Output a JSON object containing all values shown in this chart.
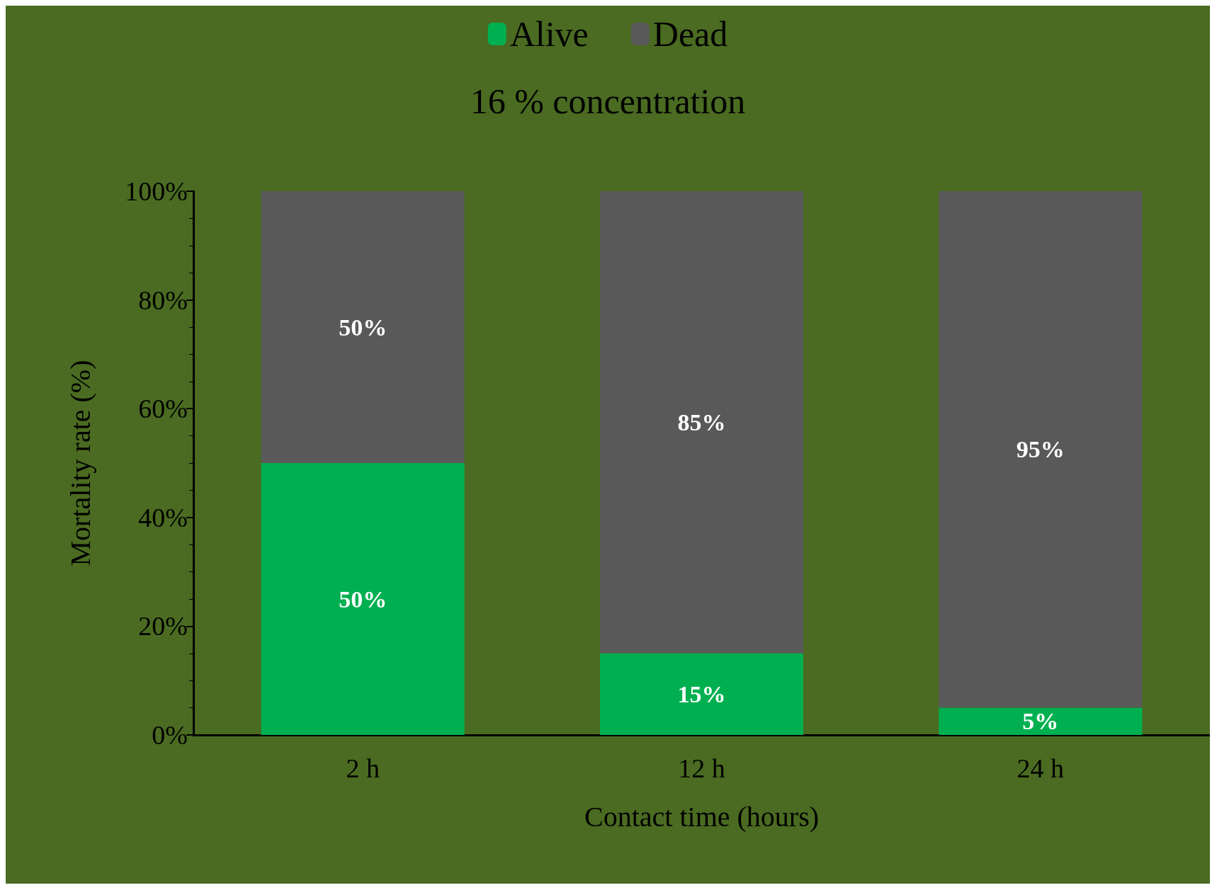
{
  "chart_data": {
    "type": "bar",
    "title": "16 % concentration",
    "xlabel": "Contact time (hours)",
    "ylabel": "Mortality rate (%)",
    "categories": [
      "2 h",
      "12 h",
      "24 h"
    ],
    "series": [
      {
        "name": "Alive",
        "color": "#00b050",
        "values": [
          50,
          15,
          5
        ],
        "value_labels": [
          "50%",
          "15%",
          "5%"
        ]
      },
      {
        "name": "Dead",
        "color": "#595959",
        "values": [
          50,
          85,
          95
        ],
        "value_labels": [
          "50%",
          "85%",
          "95%"
        ]
      }
    ],
    "stacked": true,
    "ylim": [
      0,
      100
    ],
    "yticks": [
      {
        "value": 0,
        "label": "0%"
      },
      {
        "value": 20,
        "label": "20%"
      },
      {
        "value": 40,
        "label": "40%"
      },
      {
        "value": 60,
        "label": "60%"
      },
      {
        "value": 80,
        "label": "80%"
      },
      {
        "value": 100,
        "label": "100%"
      }
    ],
    "grid": false,
    "legend": "top"
  }
}
